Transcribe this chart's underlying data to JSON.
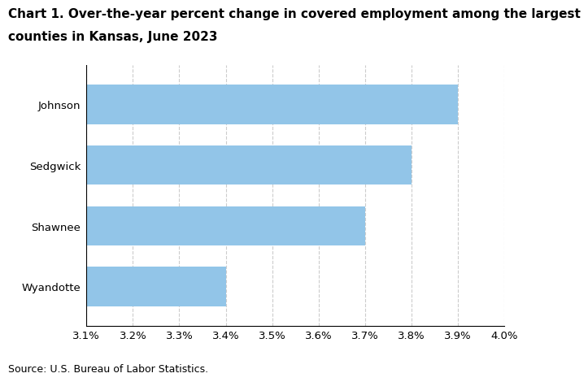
{
  "title_line1": "Chart 1. Over-the-year percent change in covered employment among the largest",
  "title_line2": "counties in Kansas, June 2023",
  "categories": [
    "Wyandotte",
    "Shawnee",
    "Sedgwick",
    "Johnson"
  ],
  "values": [
    3.4,
    3.7,
    3.8,
    3.9
  ],
  "bar_color": "#92C5E8",
  "xlim": [
    3.1,
    4.0
  ],
  "xticks": [
    3.1,
    3.2,
    3.3,
    3.4,
    3.5,
    3.6,
    3.7,
    3.8,
    3.9,
    4.0
  ],
  "source": "Source: U.S. Bureau of Labor Statistics.",
  "background_color": "#ffffff",
  "title_fontsize": 11,
  "tick_fontsize": 9.5,
  "source_fontsize": 9,
  "bar_height": 0.65,
  "grid_color": "#cccccc"
}
